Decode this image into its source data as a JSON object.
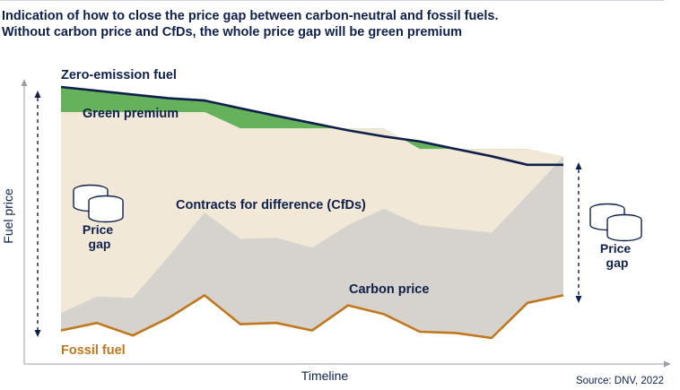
{
  "title": {
    "line1": "Indication of how to close the price gap between carbon-neutral and fossil fuels.",
    "line2": "Without carbon price and CfDs, the whole price gap will be green premium"
  },
  "source": "Source: DNV, 2022",
  "icon": "coin-stack-icon",
  "chart_data": {
    "type": "area",
    "xlabel": "Timeline",
    "ylabel": "Fuel price",
    "ylim": [
      0,
      100
    ],
    "x": [
      0,
      1,
      2,
      3,
      4,
      5,
      6,
      7,
      8,
      9,
      10,
      11,
      12,
      13,
      14
    ],
    "series": [
      {
        "name": "Zero-emission fuel",
        "role": "line",
        "color": "#0f204b",
        "values": [
          100,
          98.5,
          97,
          95.5,
          94.6,
          91.5,
          88.5,
          85.6,
          82.7,
          80.3,
          78.3,
          75.3,
          72.4,
          69,
          69
        ]
      },
      {
        "name": "Green premium",
        "role": "band",
        "color": "#66b15b",
        "values": [
          90,
          90,
          90,
          90,
          90,
          83.5,
          83.5,
          83.5,
          83.5,
          83.5,
          75.3,
          75.3,
          75.3,
          75.3,
          72.3
        ]
      },
      {
        "name": "Contracts for difference (CfDs)",
        "role": "band",
        "color": "#f2e8d7"
      },
      {
        "name": "Carbon price",
        "role": "band",
        "color": "#d6d2cd",
        "values": [
          10,
          16.5,
          16,
          32.5,
          50,
          39.5,
          40,
          36,
          45,
          51.5,
          45,
          43.5,
          42,
          57,
          72.3
        ]
      },
      {
        "name": "Fossil fuel",
        "role": "line",
        "color": "#c1771b",
        "values": [
          3,
          6,
          1,
          8,
          17,
          5.5,
          6,
          3,
          13,
          9.5,
          2.5,
          2,
          0,
          14,
          17
        ]
      }
    ],
    "annotations": [
      "Price gap",
      "Price gap"
    ],
    "grid": false
  }
}
